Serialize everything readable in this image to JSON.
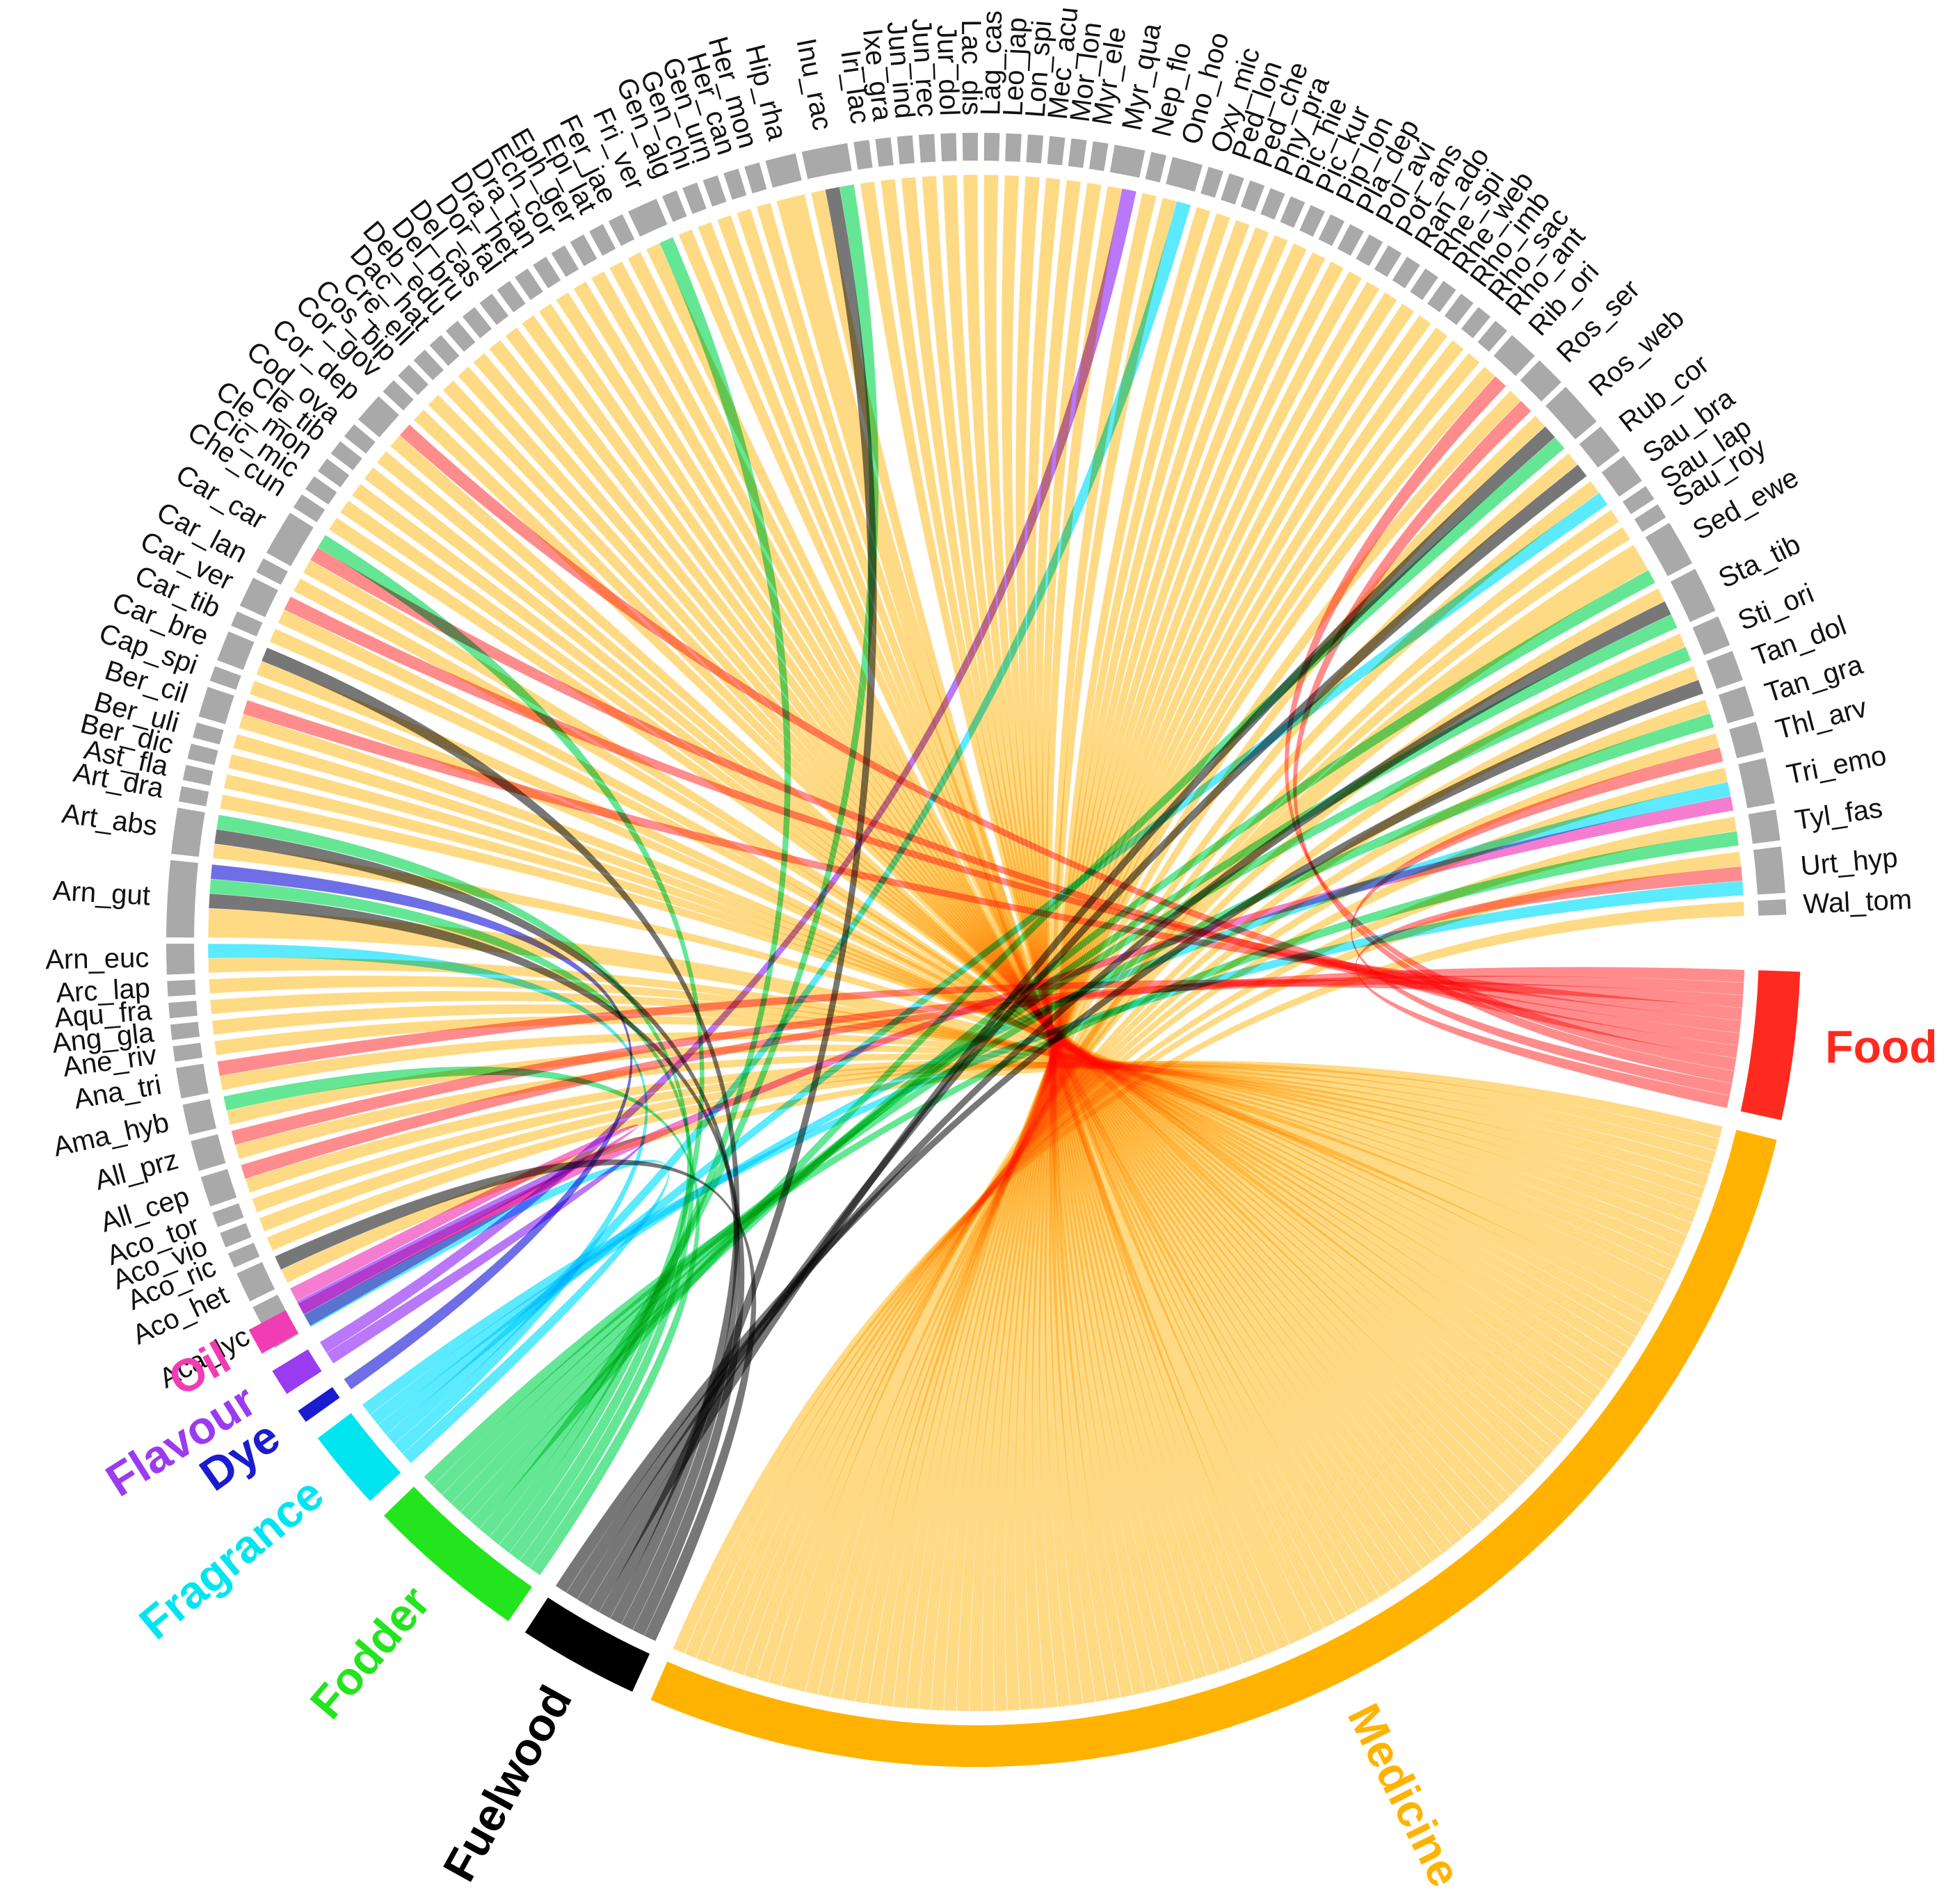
{
  "chart_data": {
    "type": "chord",
    "title": "",
    "groups": [
      {
        "name": "Food",
        "color": "#FF2A1F",
        "ribbon_color": "#FF6F6F"
      },
      {
        "name": "Medicine",
        "color": "#FFB300",
        "ribbon_color": "#FFD36E"
      },
      {
        "name": "Fuelwood",
        "color": "#000000",
        "ribbon_color": "#555555"
      },
      {
        "name": "Fodder",
        "color": "#22E51E",
        "ribbon_color": "#3EE07A"
      },
      {
        "name": "Fragrance",
        "color": "#00E5F0",
        "ribbon_color": "#33E5FF"
      },
      {
        "name": "Dye",
        "color": "#1B1BD0",
        "ribbon_color": "#4A4AE0"
      },
      {
        "name": "Flavour",
        "color": "#9B3BF0",
        "ribbon_color": "#A855F7"
      },
      {
        "name": "Oil",
        "color": "#F23CB4",
        "ribbon_color": "#F25CC4"
      }
    ],
    "species": [
      {
        "name": "Wal_tom",
        "uses": {
          "Medicine": 1
        }
      },
      {
        "name": "Urt_hyp",
        "uses": {
          "Medicine": 1,
          "Food": 1,
          "Fragrance": 1
        }
      },
      {
        "name": "Tyl_fas",
        "uses": {
          "Medicine": 1,
          "Fodder": 1
        }
      },
      {
        "name": "Tri_emo",
        "uses": {
          "Medicine": 1,
          "Oil": 1,
          "Fragrance": 1
        }
      },
      {
        "name": "Thl_arv",
        "uses": {
          "Medicine": 1,
          "Food": 1
        }
      },
      {
        "name": "Tan_gra",
        "uses": {
          "Medicine": 1,
          "Fodder": 1
        }
      },
      {
        "name": "Tan_dol",
        "uses": {
          "Medicine": 1,
          "Fuelwood": 1
        }
      },
      {
        "name": "Sti_ori",
        "uses": {
          "Fodder": 1,
          "Medicine": 1
        }
      },
      {
        "name": "Sta_tib",
        "uses": {
          "Medicine": 1,
          "Fuelwood": 1,
          "Fodder": 1
        }
      },
      {
        "name": "Sed_ewe",
        "uses": {
          "Medicine": 2,
          "Fodder": 1
        }
      },
      {
        "name": "Sau_roy",
        "uses": {
          "Medicine": 1
        }
      },
      {
        "name": "Sau_lap",
        "uses": {
          "Medicine": 1
        }
      },
      {
        "name": "Sau_bra",
        "uses": {
          "Medicine": 1,
          "Fragrance": 1
        }
      },
      {
        "name": "Rub_cor",
        "uses": {
          "Medicine": 1,
          "Fuelwood": 1
        }
      },
      {
        "name": "Ros_web",
        "uses": {
          "Medicine": 1,
          "Fuelwood": 1,
          "Fodder": 1
        }
      },
      {
        "name": "Ros_ser",
        "uses": {
          "Medicine": 1,
          "Food": 1
        }
      },
      {
        "name": "Rib_ori",
        "uses": {
          "Medicine": 1,
          "Food": 1
        }
      },
      {
        "name": "Rho_ant",
        "uses": {
          "Medicine": 1
        }
      },
      {
        "name": "Rho_sac",
        "uses": {
          "Medicine": 1
        }
      },
      {
        "name": "Rho_imb",
        "uses": {
          "Medicine": 1
        }
      },
      {
        "name": "Rhe_web",
        "uses": {
          "Medicine": 1
        }
      },
      {
        "name": "Rhe_spi",
        "uses": {
          "Medicine": 1
        }
      },
      {
        "name": "Ran_ado",
        "uses": {
          "Medicine": 1
        }
      },
      {
        "name": "Pot_ans",
        "uses": {
          "Medicine": 1
        }
      },
      {
        "name": "Pol_avi",
        "uses": {
          "Medicine": 1
        }
      },
      {
        "name": "Pla_dep",
        "uses": {
          "Medicine": 1
        }
      },
      {
        "name": "Pip_lon",
        "uses": {
          "Medicine": 1
        }
      },
      {
        "name": "Pic_kur",
        "uses": {
          "Medicine": 1
        }
      },
      {
        "name": "Pic_hie",
        "uses": {
          "Medicine": 1
        }
      },
      {
        "name": "Phy_pra",
        "uses": {
          "Medicine": 1
        }
      },
      {
        "name": "Ped_che",
        "uses": {
          "Medicine": 1
        }
      },
      {
        "name": "Ped_lon",
        "uses": {
          "Medicine": 1
        }
      },
      {
        "name": "Oxy_mic",
        "uses": {
          "Medicine": 1
        }
      },
      {
        "name": "Ono_hoo",
        "uses": {
          "Medicine": 1,
          "Fragrance": 1
        }
      },
      {
        "name": "Nep_flo",
        "uses": {
          "Medicine": 1
        }
      },
      {
        "name": "Myr_qua",
        "uses": {
          "Medicine": 1,
          "Flavour": 1
        }
      },
      {
        "name": "Myr_ele",
        "uses": {
          "Medicine": 1
        }
      },
      {
        "name": "Mor_lon",
        "uses": {
          "Medicine": 1
        }
      },
      {
        "name": "Mec_acu",
        "uses": {
          "Medicine": 1
        }
      },
      {
        "name": "Lon_spi",
        "uses": {
          "Medicine": 1
        }
      },
      {
        "name": "Leo_jap",
        "uses": {
          "Medicine": 1
        }
      },
      {
        "name": "Lag_cas",
        "uses": {
          "Medicine": 1
        }
      },
      {
        "name": "Lac_dis",
        "uses": {
          "Medicine": 1
        }
      },
      {
        "name": "Jur_dol",
        "uses": {
          "Medicine": 1
        }
      },
      {
        "name": "Jun_rec",
        "uses": {
          "Medicine": 1
        }
      },
      {
        "name": "Jun_ind",
        "uses": {
          "Medicine": 1
        }
      },
      {
        "name": "Ixe_gra",
        "uses": {
          "Medicine": 1
        }
      },
      {
        "name": "Iri_lac",
        "uses": {
          "Medicine": 1
        }
      },
      {
        "name": "Inu_rac",
        "uses": {
          "Medicine": 1,
          "Fuelwood": 1,
          "Fodder": 1
        }
      },
      {
        "name": "Hip_rha",
        "uses": {
          "Medicine": 2
        }
      },
      {
        "name": "Her_mon",
        "uses": {
          "Medicine": 1
        }
      },
      {
        "name": "Her_can",
        "uses": {
          "Medicine": 1
        }
      },
      {
        "name": "Gen_urn",
        "uses": {
          "Medicine": 1
        }
      },
      {
        "name": "Gen_chi",
        "uses": {
          "Medicine": 1
        }
      },
      {
        "name": "Gen_alg",
        "uses": {
          "Medicine": 1
        }
      },
      {
        "name": "Fri_ver",
        "uses": {
          "Medicine": 1,
          "Fodder": 1
        }
      },
      {
        "name": "Fer_jae",
        "uses": {
          "Medicine": 1
        }
      },
      {
        "name": "Epi_lat",
        "uses": {
          "Medicine": 1
        }
      },
      {
        "name": "Eph_ger",
        "uses": {
          "Medicine": 1
        }
      },
      {
        "name": "Ech_cor",
        "uses": {
          "Medicine": 1
        }
      },
      {
        "name": "Dra_tan",
        "uses": {
          "Medicine": 1
        }
      },
      {
        "name": "Dra_het",
        "uses": {
          "Medicine": 1
        }
      },
      {
        "name": "Dor_fal",
        "uses": {
          "Medicine": 1
        }
      },
      {
        "name": "Del_cas",
        "uses": {
          "Medicine": 1
        }
      },
      {
        "name": "Del_bru",
        "uses": {
          "Medicine": 1
        }
      },
      {
        "name": "Deb_edu",
        "uses": {
          "Medicine": 1
        }
      },
      {
        "name": "Dac_hat",
        "uses": {
          "Medicine": 1
        }
      },
      {
        "name": "Cre_ell",
        "uses": {
          "Medicine": 1
        }
      },
      {
        "name": "Cos_bip",
        "uses": {
          "Medicine": 1
        }
      },
      {
        "name": "Cor_gov",
        "uses": {
          "Medicine": 1
        }
      },
      {
        "name": "Cor_dep",
        "uses": {
          "Medicine": 1,
          "Food": 1
        }
      },
      {
        "name": "Cod_ova",
        "uses": {
          "Medicine": 1
        }
      },
      {
        "name": "Cle_tib",
        "uses": {
          "Medicine": 1
        }
      },
      {
        "name": "Cle_mon",
        "uses": {
          "Medicine": 1
        }
      },
      {
        "name": "Cic_mic",
        "uses": {
          "Medicine": 1
        }
      },
      {
        "name": "Che_cun",
        "uses": {
          "Medicine": 1
        }
      },
      {
        "name": "Car_car",
        "uses": {
          "Medicine": 1,
          "Food": 1,
          "Fodder": 1
        }
      },
      {
        "name": "Car_lan",
        "uses": {
          "Medicine": 1
        }
      },
      {
        "name": "Car_ver",
        "uses": {
          "Medicine": 1,
          "Food": 1
        }
      },
      {
        "name": "Car_tib",
        "uses": {
          "Medicine": 1
        }
      },
      {
        "name": "Car_bre",
        "uses": {
          "Medicine": 1,
          "Fuelwood": 1
        }
      },
      {
        "name": "Cap_spi",
        "uses": {
          "Medicine": 1
        }
      },
      {
        "name": "Ber_cil",
        "uses": {
          "Medicine": 1,
          "Food": 1
        }
      },
      {
        "name": "Ber_uli",
        "uses": {
          "Medicine": 1
        }
      },
      {
        "name": "Ber_dic",
        "uses": {
          "Medicine": 1
        }
      },
      {
        "name": "Ast_fla",
        "uses": {
          "Medicine": 1
        }
      },
      {
        "name": "Art_dra",
        "uses": {
          "Medicine": 1
        }
      },
      {
        "name": "Art_abs",
        "uses": {
          "Medicine": 1,
          "Fuelwood": 1,
          "Fodder": 1
        }
      },
      {
        "name": "Arn_gut",
        "uses": {
          "Medicine": 2,
          "Fuelwood": 1,
          "Fodder": 1,
          "Dye": 1
        }
      },
      {
        "name": "Arn_euc",
        "uses": {
          "Medicine": 1,
          "Fragrance": 1
        }
      },
      {
        "name": "Arc_lap",
        "uses": {
          "Medicine": 1
        }
      },
      {
        "name": "Aqu_fra",
        "uses": {
          "Medicine": 1
        }
      },
      {
        "name": "Ang_gla",
        "uses": {
          "Medicine": 1
        }
      },
      {
        "name": "Ane_riv",
        "uses": {
          "Medicine": 1
        }
      },
      {
        "name": "Ana_tri",
        "uses": {
          "Medicine": 1,
          "Food": 1
        }
      },
      {
        "name": "Ama_hyb",
        "uses": {
          "Medicine": 1,
          "Fodder": 1
        }
      },
      {
        "name": "All_prz",
        "uses": {
          "Medicine": 1,
          "Food": 1
        }
      },
      {
        "name": "All_cep",
        "uses": {
          "Medicine": 1,
          "Food": 1
        }
      },
      {
        "name": "Aco_tor",
        "uses": {
          "Medicine": 1
        }
      },
      {
        "name": "Aco_vio",
        "uses": {
          "Medicine": 1
        }
      },
      {
        "name": "Aco_ric",
        "uses": {
          "Medicine": 1
        }
      },
      {
        "name": "Aco_het",
        "uses": {
          "Medicine": 1,
          "Fuelwood": 1
        }
      },
      {
        "name": "Aca_lyc",
        "uses": {
          "Oil": 1,
          "Flavour": 1,
          "Fragrance": 1
        }
      }
    ],
    "legend": "none",
    "grid": false
  }
}
